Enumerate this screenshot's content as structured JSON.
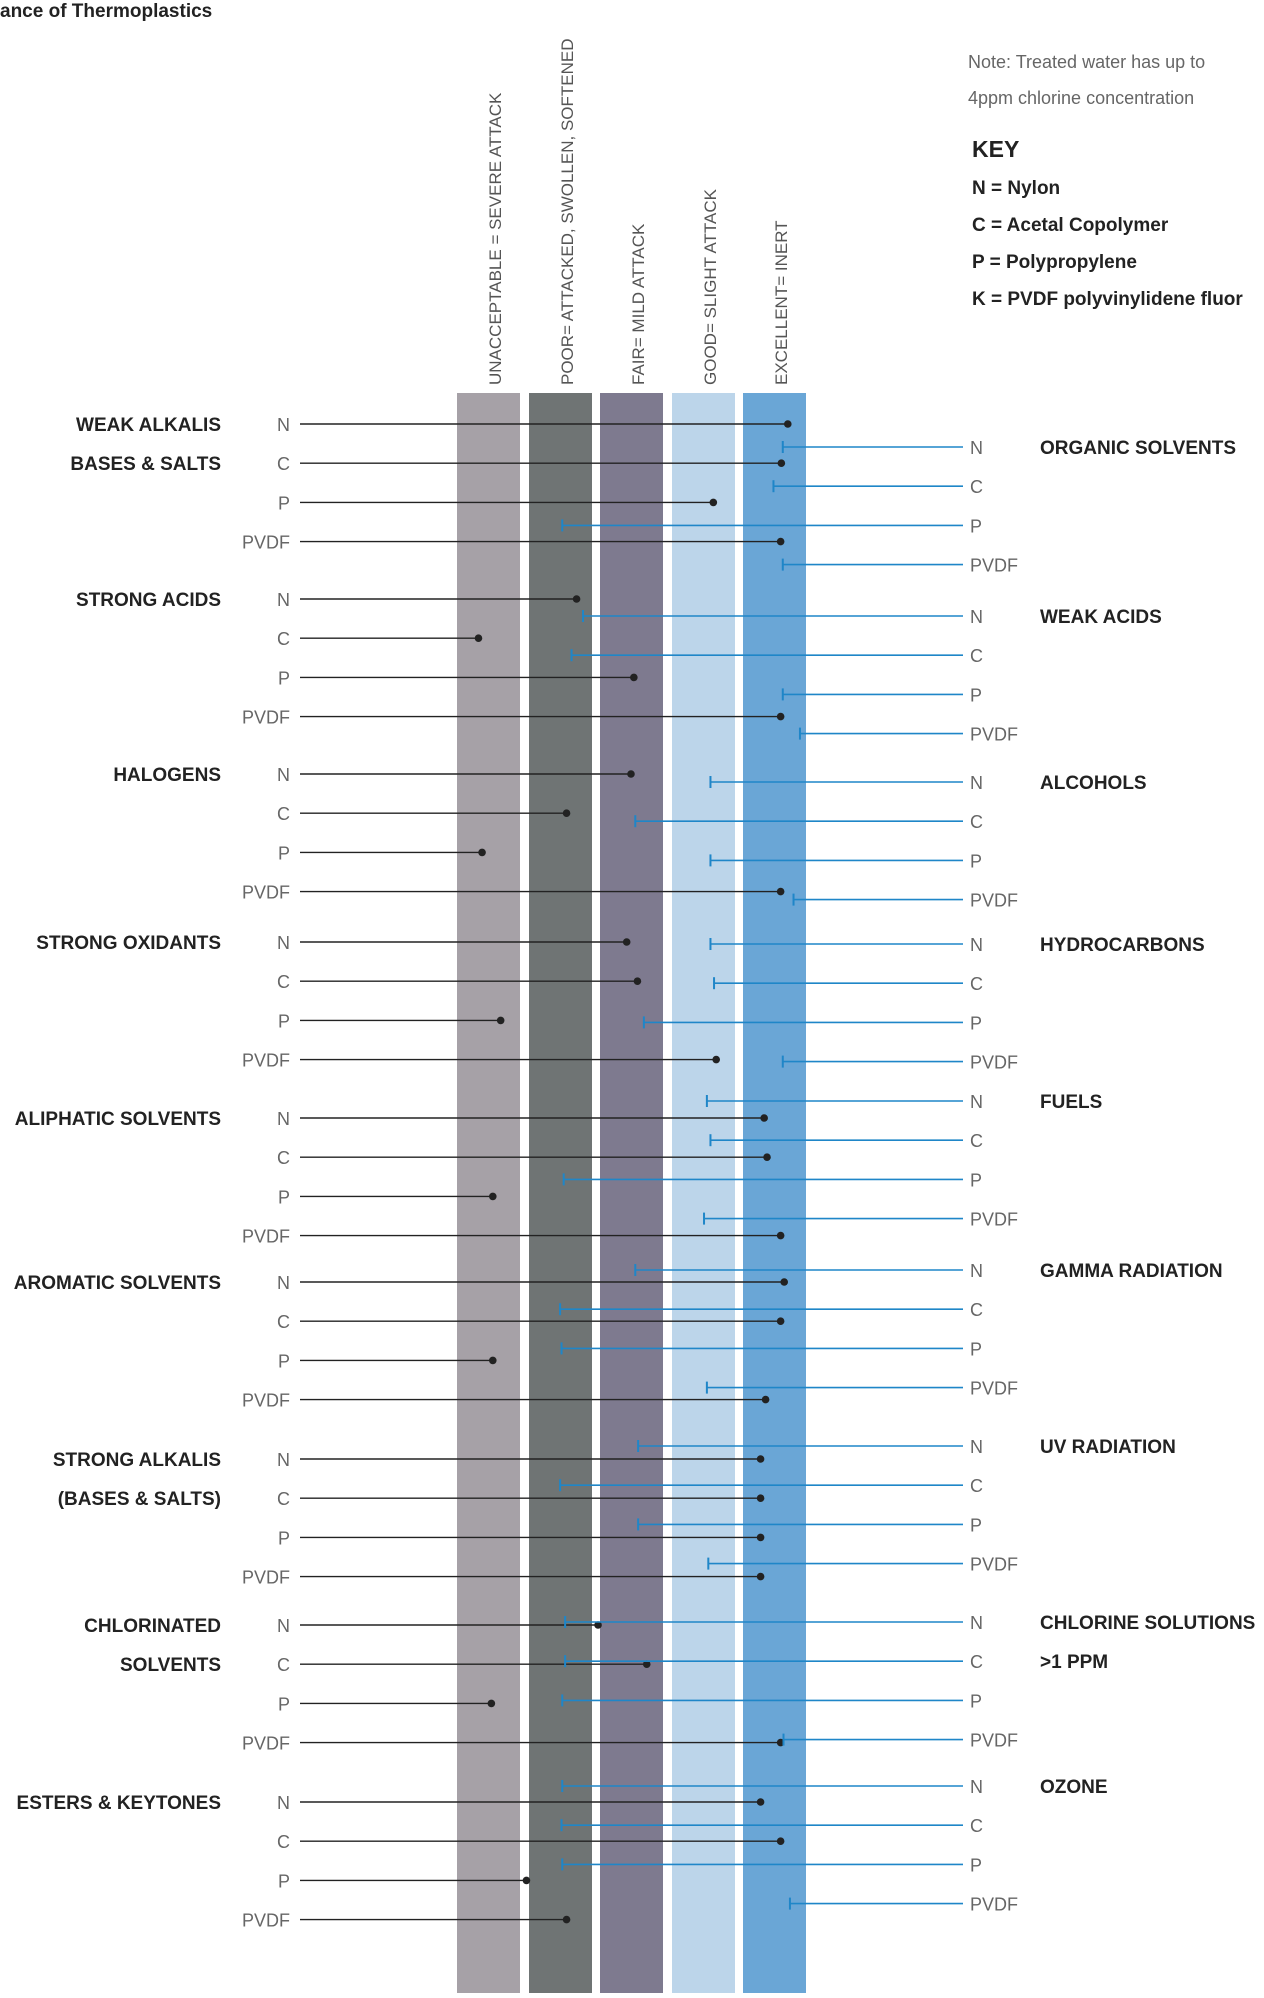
{
  "chart_data": {
    "type": "dot-strip",
    "title": "ance of Thermoplastics",
    "ratings": [
      {
        "key": "unacceptable",
        "label": "UNACCEPTABLE = SEVERE ATTACK",
        "color": "#a6a1a7"
      },
      {
        "key": "poor",
        "label": "POOR= ATTACKED, SWOLLEN, SOFTENED",
        "color": "#6f7474"
      },
      {
        "key": "fair",
        "label": "FAIR= MILD ATTACK",
        "color": "#7e7a8f"
      },
      {
        "key": "good",
        "label": "GOOD= SLIGHT ATTACK",
        "color": "#bcd5ea"
      },
      {
        "key": "excellent",
        "label": "EXCELLENT= INERT",
        "color": "#6aa6d6"
      }
    ],
    "note": [
      "Note: Treated water has up to",
      "4ppm chlorine concentration"
    ],
    "key": {
      "title": "KEY",
      "items": [
        "N = Nylon",
        "C = Acetal Copolymer",
        "P = Polypropylene",
        "K = PVDF polyvinylidene fluor"
      ]
    },
    "materials": [
      "N",
      "C",
      "P",
      "PVDF"
    ],
    "left_groups": [
      {
        "label": [
          "WEAK ALKALIS",
          "BASES & SALTS"
        ],
        "values": [
          4.62,
          4.53,
          3.58,
          4.52
        ]
      },
      {
        "label": [
          "STRONG ACIDS"
        ],
        "values": [
          1.67,
          0.3,
          2.47,
          4.52
        ]
      },
      {
        "label": [
          "HALOGENS"
        ],
        "values": [
          2.43,
          1.53,
          0.35,
          4.52
        ]
      },
      {
        "label": [
          "STRONG OXIDANTS"
        ],
        "values": [
          2.37,
          2.52,
          0.61,
          3.62
        ]
      },
      {
        "label": [
          "ALIPHATIC SOLVENTS"
        ],
        "values": [
          4.29,
          4.33,
          0.5,
          4.52
        ]
      },
      {
        "label": [
          "AROMATIC SOLVENTS"
        ],
        "values": [
          4.57,
          4.52,
          0.5,
          4.31
        ]
      },
      {
        "label": [
          "STRONG ALKALIS",
          "(BASES & SALTS)"
        ],
        "values": [
          4.24,
          4.24,
          4.24,
          4.24
        ]
      },
      {
        "label": [
          "CHLORINATED",
          "SOLVENTS"
        ],
        "values": [
          1.97,
          2.65,
          0.48,
          4.52
        ]
      },
      {
        "label": [
          "ESTERS & KEYTONES"
        ],
        "values": [
          4.24,
          4.52,
          0.97,
          1.53
        ]
      }
    ],
    "right_groups": [
      {
        "label": [
          "ORGANIC SOLVENTS"
        ],
        "values": [
          4.55,
          4.42,
          1.47,
          4.55
        ]
      },
      {
        "label": [
          "WEAK ACIDS"
        ],
        "values": [
          1.76,
          1.6,
          4.55,
          4.79
        ]
      },
      {
        "label": [
          "ALCOHOLS"
        ],
        "values": [
          3.54,
          2.49,
          3.54,
          4.7
        ]
      },
      {
        "label": [
          "HYDROCARBONS"
        ],
        "values": [
          3.54,
          3.59,
          2.61,
          4.55
        ]
      },
      {
        "label": [
          "FUELS"
        ],
        "values": [
          3.49,
          3.54,
          1.49,
          3.45
        ]
      },
      {
        "label": [
          "GAMMA RADIATION"
        ],
        "values": [
          2.49,
          1.44,
          1.46,
          3.49
        ]
      },
      {
        "label": [
          "UV RADIATION"
        ],
        "values": [
          2.53,
          1.44,
          2.53,
          3.51
        ]
      },
      {
        "label": [
          "CHLORINE SOLUTIONS",
          ">1 PPM"
        ],
        "values": [
          1.51,
          1.51,
          1.47,
          4.56
        ]
      },
      {
        "label": [
          "OZONE"
        ],
        "values": [
          1.47,
          1.46,
          1.47,
          4.65
        ]
      }
    ]
  }
}
